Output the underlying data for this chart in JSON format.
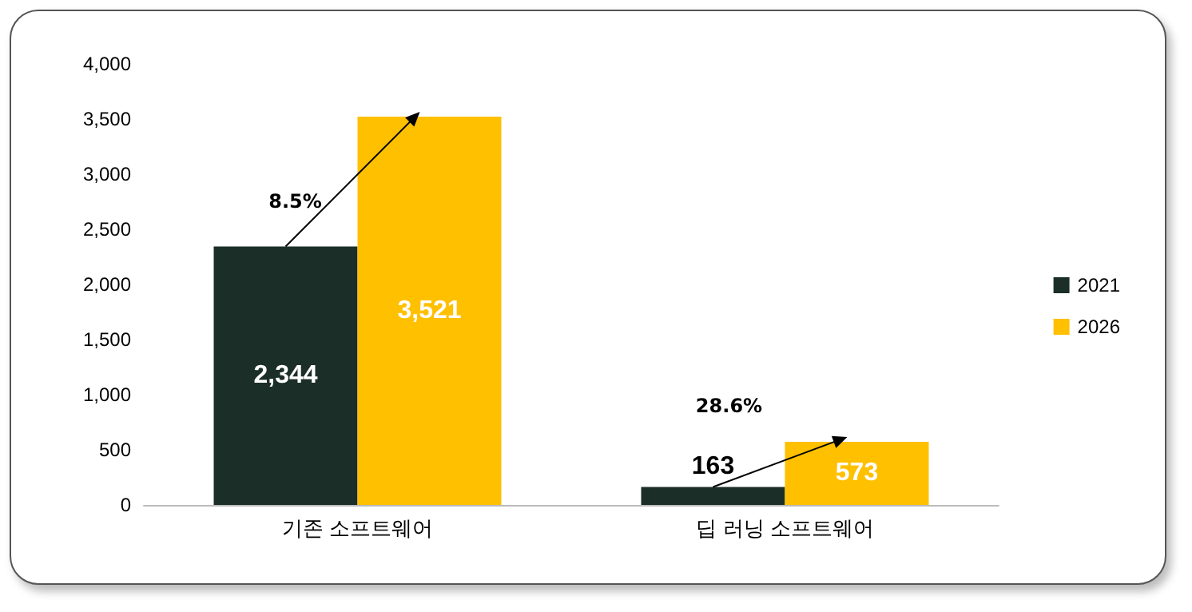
{
  "chart_data": {
    "type": "bar",
    "categories": [
      "기존 소프트웨어",
      "딥 러닝 소프트웨어"
    ],
    "series": [
      {
        "name": "2021",
        "color": "#1c2e28",
        "values": [
          2344,
          163
        ],
        "value_labels": [
          "2,344",
          "163"
        ]
      },
      {
        "name": "2026",
        "color": "#ffc000",
        "values": [
          3521,
          573
        ],
        "value_labels": [
          "3,521",
          "573"
        ]
      }
    ],
    "ylim": [
      0,
      4000
    ],
    "yticks": [
      {
        "value": 0,
        "label": "0"
      },
      {
        "value": 500,
        "label": "500"
      },
      {
        "value": 1000,
        "label": "1,000"
      },
      {
        "value": 1500,
        "label": "1,500"
      },
      {
        "value": 2000,
        "label": "2,000"
      },
      {
        "value": 2500,
        "label": "2,500"
      },
      {
        "value": 3000,
        "label": "3,000"
      },
      {
        "value": 3500,
        "label": "3,500"
      },
      {
        "value": 4000,
        "label": "4,000"
      }
    ],
    "annotations": [
      "8.5%",
      "28.6%"
    ],
    "grid": false,
    "legend": "right"
  }
}
